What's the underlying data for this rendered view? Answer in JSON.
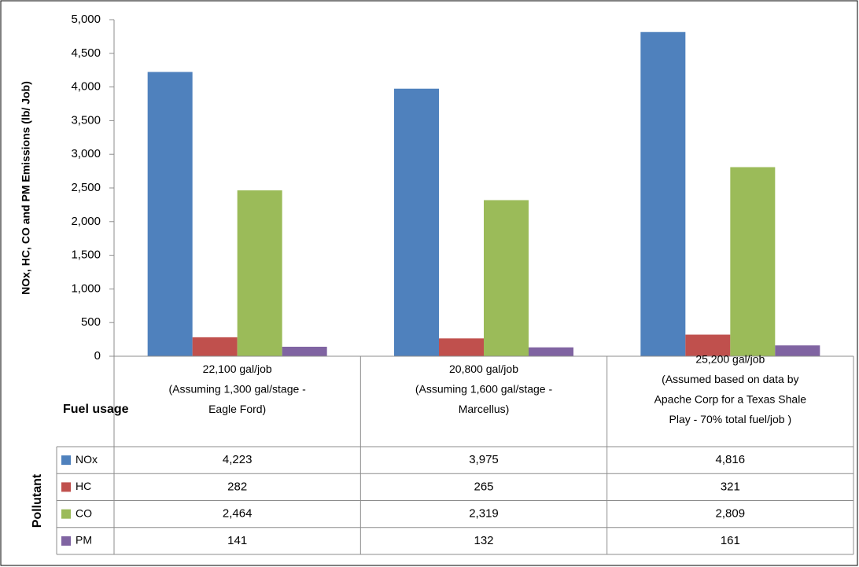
{
  "chart_data": {
    "type": "bar",
    "ylabel": "NOx, HC, CO and PM Emissions (lb/ Job)",
    "row_header": "Fuel usage",
    "series_header": "Pollutant",
    "categories": [
      [
        "22,100 gal/job",
        "(Assuming 1,300 gal/stage -",
        "Eagle Ford)"
      ],
      [
        "20,800 gal/job",
        "(Assuming 1,600 gal/stage -",
        "Marcellus)"
      ],
      [
        "25,200 gal/job",
        "(Assumed based on data by",
        "Apache Corp for a Texas Shale",
        "Play - 70% total fuel/job )"
      ]
    ],
    "series": [
      {
        "name": "NOx",
        "color": "#4f81bd",
        "values": [
          4223,
          3975,
          4816
        ],
        "value_labels": [
          "4,223",
          "3,975",
          "4,816"
        ]
      },
      {
        "name": "HC",
        "color": "#c0504d",
        "values": [
          282,
          265,
          321
        ],
        "value_labels": [
          "282",
          "265",
          "321"
        ]
      },
      {
        "name": "CO",
        "color": "#9bbb59",
        "values": [
          2464,
          2319,
          2809
        ],
        "value_labels": [
          "2,464",
          "2,319",
          "2,809"
        ]
      },
      {
        "name": "PM",
        "color": "#8064a2",
        "values": [
          141,
          132,
          161
        ],
        "value_labels": [
          "141",
          "132",
          "161"
        ]
      }
    ],
    "ylim": [
      0,
      5000
    ],
    "yticks": [
      0,
      500,
      {
        "value": 1000,
        "label": "1,000"
      },
      {
        "value": 1500,
        "label": "1,500"
      },
      {
        "value": 2000,
        "label": "2,000"
      },
      {
        "value": 2500,
        "label": "2,500"
      },
      {
        "value": 3000,
        "label": "3,000"
      },
      {
        "value": 3500,
        "label": "3,500"
      },
      {
        "value": 4000,
        "label": "4,000"
      },
      {
        "value": 4500,
        "label": "4,500"
      },
      {
        "value": 5000,
        "label": "5,000"
      }
    ]
  }
}
